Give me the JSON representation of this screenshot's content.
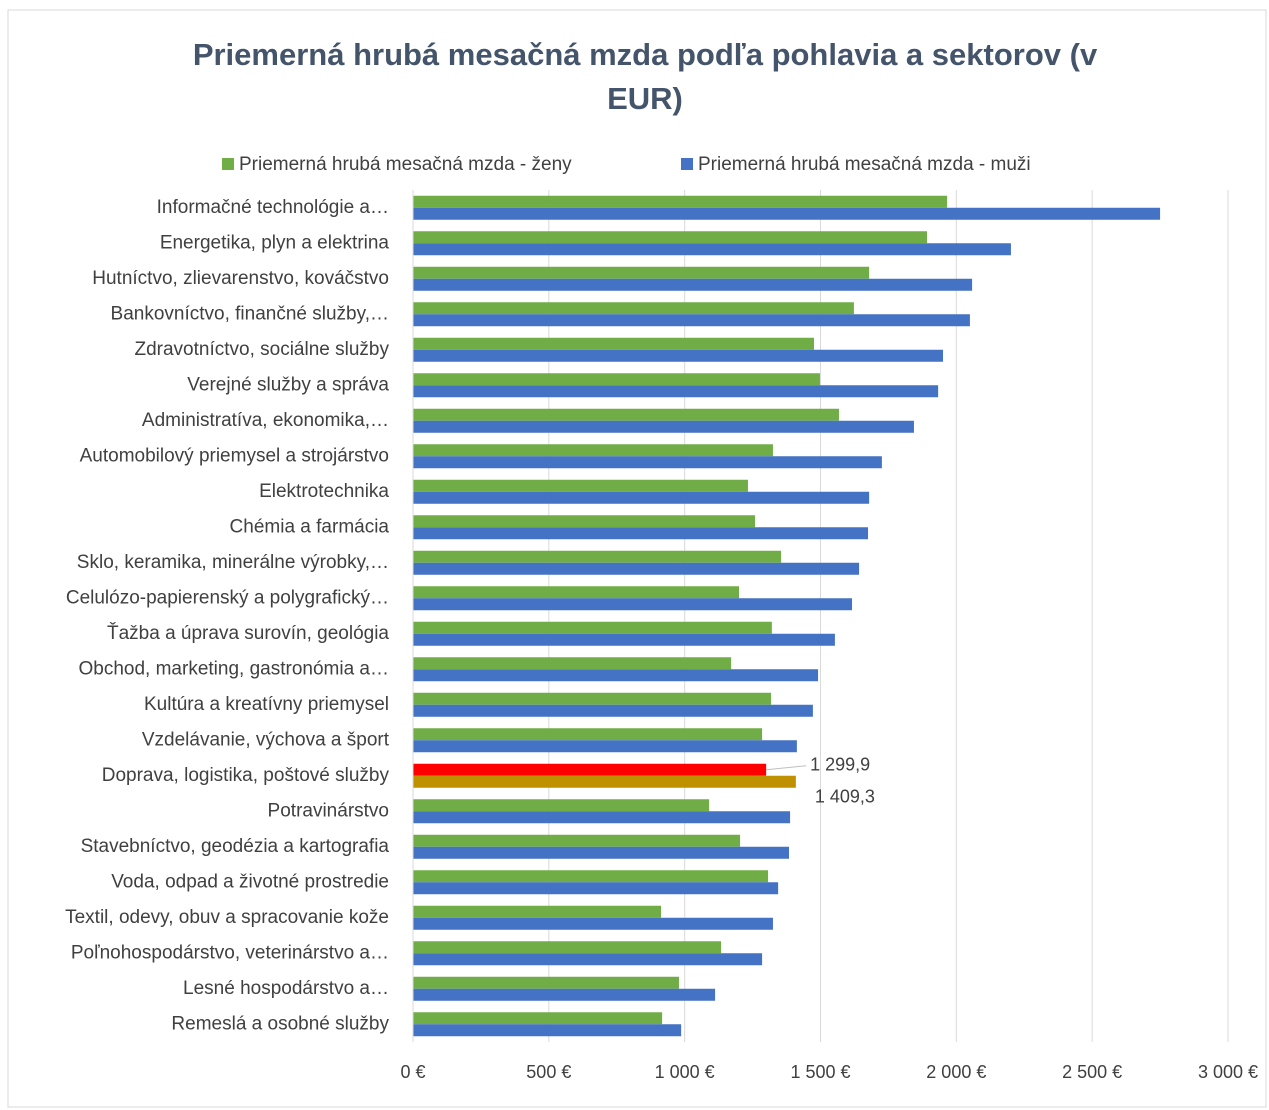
{
  "chart_data": {
    "type": "hbar",
    "title": [
      "Priemerná hrubá mesačná mzda podľa pohlavia a sektorov (v",
      "EUR)"
    ],
    "categories": [
      "Informačné technológie a…",
      "Energetika, plyn a elektrina",
      "Hutníctvo, zlievarenstvo, kováčstvo",
      "Bankovníctvo, finančné služby,…",
      "Zdravotníctvo, sociálne služby",
      "Verejné služby a správa",
      "Administratíva, ekonomika,…",
      "Automobilový priemysel a strojárstvo",
      "Elektrotechnika",
      "Chémia a farmácia",
      "Sklo, keramika, minerálne výrobky,…",
      "Celulózo-papierenský a polygrafický…",
      "Ťažba a úprava surovín, geológia",
      "Obchod, marketing, gastronómia a…",
      "Kultúra a kreatívny priemysel",
      "Vzdelávanie, výchova a šport",
      "Doprava, logistika, poštové služby",
      "Potravinárstvo",
      "Stavebníctvo, geodézia a kartografia",
      "Voda, odpad a životné prostredie",
      "Textil, odevy, obuv a spracovanie kože",
      "Poľnohospodárstvo, veterinárstvo a…",
      "Lesné hospodárstvo a…",
      "Remeslá a osobné služby"
    ],
    "series": [
      {
        "name": "Priemerná hrubá mesačná mzda - ženy",
        "color": "#70ad47",
        "point_colors": {
          "16": "#ff0000"
        },
        "values": [
          1966,
          1892,
          1679,
          1623,
          1476,
          1498,
          1568,
          1325,
          1233,
          1259,
          1355,
          1200,
          1321,
          1171,
          1318,
          1285,
          1299.9,
          1090,
          1204,
          1307,
          913,
          1134,
          979,
          917
        ],
        "value_labels": [
          null,
          null,
          null,
          null,
          null,
          null,
          null,
          null,
          null,
          null,
          null,
          null,
          null,
          null,
          null,
          null,
          "1 299,9",
          null,
          null,
          null,
          null,
          null,
          null,
          null
        ]
      },
      {
        "name": "Priemerná hrubá mesačná mzda - muži",
        "color": "#4472c4",
        "point_colors": {
          "16": "#bf9000"
        },
        "values": [
          2750,
          2201,
          2058,
          2050,
          1951,
          1933,
          1844,
          1726,
          1679,
          1675,
          1642,
          1616,
          1553,
          1491,
          1472,
          1413,
          1409.3,
          1388,
          1384,
          1344,
          1325,
          1285,
          1112,
          987
        ],
        "value_labels": [
          null,
          null,
          null,
          null,
          null,
          null,
          null,
          null,
          null,
          null,
          null,
          null,
          null,
          null,
          null,
          null,
          "1 409,3",
          null,
          null,
          null,
          null,
          null,
          null,
          null
        ]
      }
    ],
    "xlim": [
      0,
      3000
    ],
    "xticks": [
      {
        "value": 0,
        "label": "0 €"
      },
      {
        "value": 500,
        "label": "500 €"
      },
      {
        "value": 1000,
        "label": "1 000 €"
      },
      {
        "value": 1500,
        "label": "1 500 €"
      },
      {
        "value": 2000,
        "label": "2 000 €"
      },
      {
        "value": 2500,
        "label": "2 500 €"
      },
      {
        "value": 3000,
        "label": "3 000 €"
      }
    ],
    "grid": true,
    "legend": "top"
  }
}
